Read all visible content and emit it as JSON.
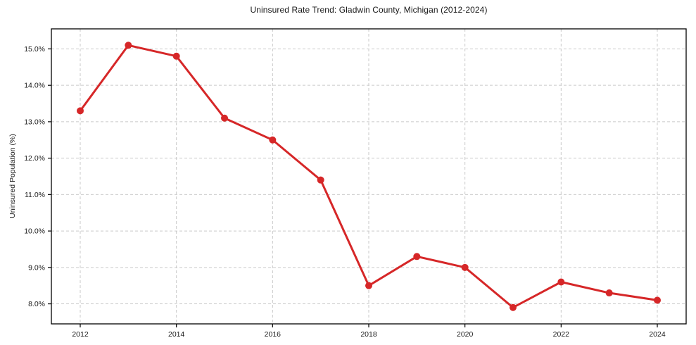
{
  "chart_data": {
    "type": "line",
    "title": "Uninsured Rate Trend: Gladwin County, Michigan (2012-2024)",
    "xlabel": "",
    "ylabel": "Uninsured Population (%)",
    "x": [
      2012,
      2013,
      2014,
      2015,
      2016,
      2017,
      2018,
      2019,
      2020,
      2021,
      2022,
      2023,
      2024
    ],
    "values": [
      13.3,
      15.1,
      14.8,
      13.1,
      12.5,
      11.4,
      8.5,
      9.3,
      9.0,
      7.9,
      8.6,
      8.3,
      8.1
    ],
    "xticks": [
      2012,
      2014,
      2016,
      2018,
      2020,
      2022,
      2024
    ],
    "yticks": [
      8,
      9,
      10,
      11,
      12,
      13,
      14,
      15
    ],
    "ytick_suffix": "%",
    "xlim": [
      2011.4,
      2024.6
    ],
    "ylim": [
      7.45,
      15.55
    ],
    "grid": true,
    "grid_style": "dashed",
    "legend_position": "none",
    "line_color": "#d62728",
    "grid_color": "#c9c9c9",
    "axis_color": "#000000",
    "text_color": "#1a1a1a",
    "background_color": "#ffffff",
    "marker": "o",
    "marker_size": 5,
    "line_width": 3
  }
}
